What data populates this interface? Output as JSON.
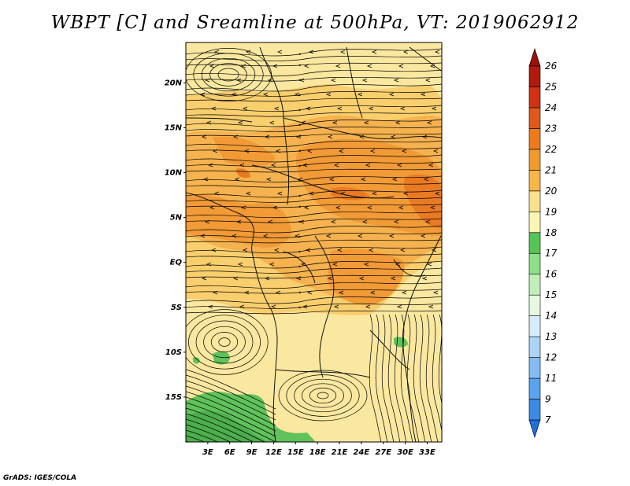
{
  "title": "WBPT [C] and Sreamline at 500hPa, VT: 2019062912",
  "credit": "GrADS: IGES/COLA",
  "map": {
    "lon_labels": [
      "3E",
      "6E",
      "9E",
      "12E",
      "15E",
      "18E",
      "21E",
      "24E",
      "27E",
      "30E",
      "33E"
    ],
    "lat_labels": [
      "20N",
      "15N",
      "10N",
      "5N",
      "EQ",
      "5S",
      "10S",
      "15S"
    ],
    "lon_range": [
      0,
      35
    ],
    "lat_range": [
      -20,
      24.5
    ]
  },
  "colorbar": {
    "levels": [
      "7",
      "9",
      "11",
      "12",
      "13",
      "14",
      "15",
      "16",
      "17",
      "18",
      "19",
      "20",
      "21",
      "22",
      "23",
      "24",
      "25",
      "26"
    ],
    "colors": [
      "#1e6fd9",
      "#3a8ae6",
      "#5aa3ef",
      "#82bcf4",
      "#aad4f8",
      "#d4ecfb",
      "#e6f8e2",
      "#bff0b7",
      "#8ee089",
      "#55c557",
      "#fdf5b3",
      "#fde08c",
      "#f7b646",
      "#f29a2c",
      "#ee7a1c",
      "#e3581a",
      "#d23212",
      "#b11a0c",
      "#9b1008"
    ]
  }
}
